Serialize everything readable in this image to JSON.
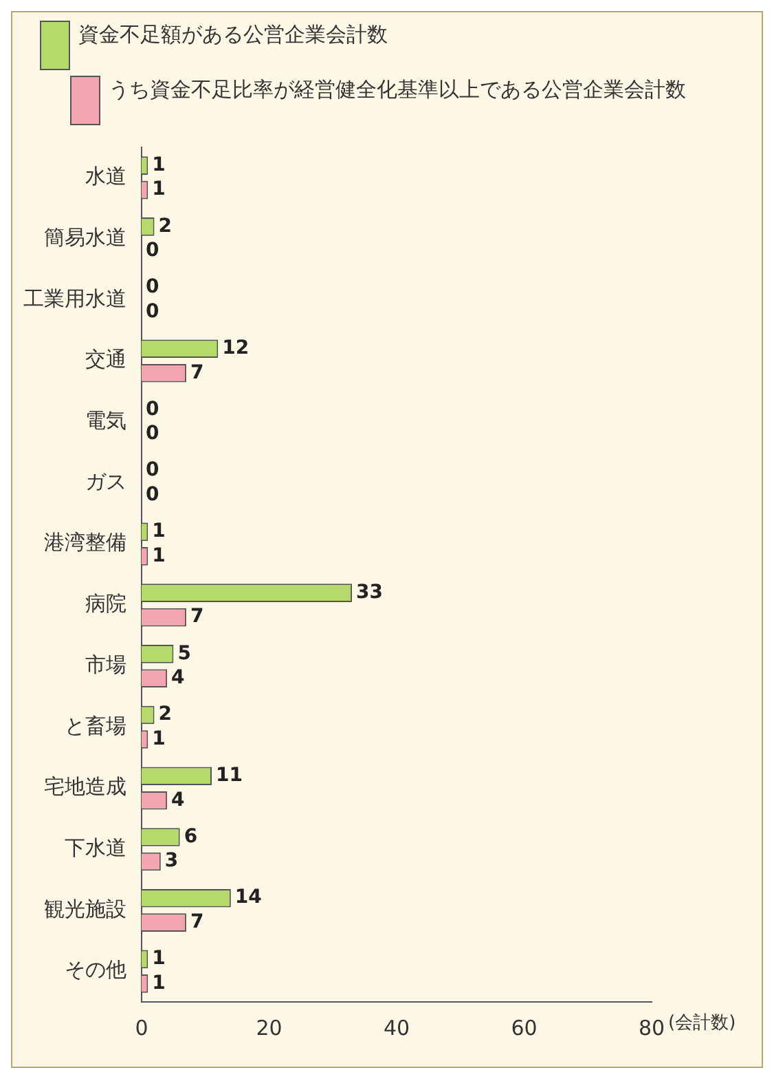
{
  "chart_data": {
    "type": "bar",
    "orientation": "horizontal",
    "categories": [
      "水道",
      "簡易水道",
      "工業用水道",
      "交通",
      "電気",
      "ガス",
      "港湾整備",
      "病院",
      "市場",
      "と畜場",
      "宅地造成",
      "下水道",
      "観光施設",
      "その他"
    ],
    "series": [
      {
        "name": "資金不足額がある公営企業会計数",
        "color": "#b5d96b",
        "values": [
          1,
          2,
          0,
          12,
          0,
          0,
          1,
          33,
          5,
          2,
          11,
          6,
          14,
          1
        ]
      },
      {
        "name": "うち資金不足比率が経営健全化基準以上である公営企業会計数",
        "color": "#f4a6b0",
        "values": [
          1,
          0,
          0,
          7,
          0,
          0,
          1,
          7,
          4,
          1,
          4,
          3,
          7,
          1
        ]
      }
    ],
    "xlabel": "(会計数)",
    "xlim": [
      0,
      80
    ],
    "xticks": [
      0,
      20,
      40,
      60,
      80
    ],
    "data_labels": true,
    "grid": false,
    "legend": "top left"
  }
}
